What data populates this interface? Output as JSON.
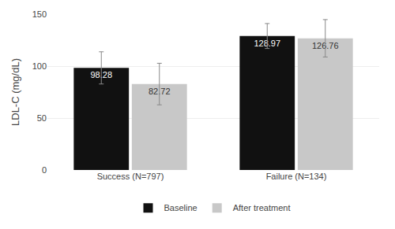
{
  "chart_data": {
    "type": "bar",
    "categories": [
      "Success (N=797)",
      "Failure (N=134)"
    ],
    "series": [
      {
        "name": "Baseline",
        "color": "#111111",
        "values": [
          98.28,
          128.97
        ],
        "errors": [
          15.5,
          12.0
        ]
      },
      {
        "name": "After treatment",
        "color": "#c8c8c8",
        "values": [
          82.72,
          126.76
        ],
        "errors": [
          20.0,
          18.0
        ]
      }
    ],
    "ylabel": "LDL-C (mg/dL)",
    "ylim": [
      0,
      150
    ],
    "yticks": [
      0,
      50,
      100,
      150
    ],
    "grid": true,
    "data_labels": true,
    "legend": "bottom"
  }
}
